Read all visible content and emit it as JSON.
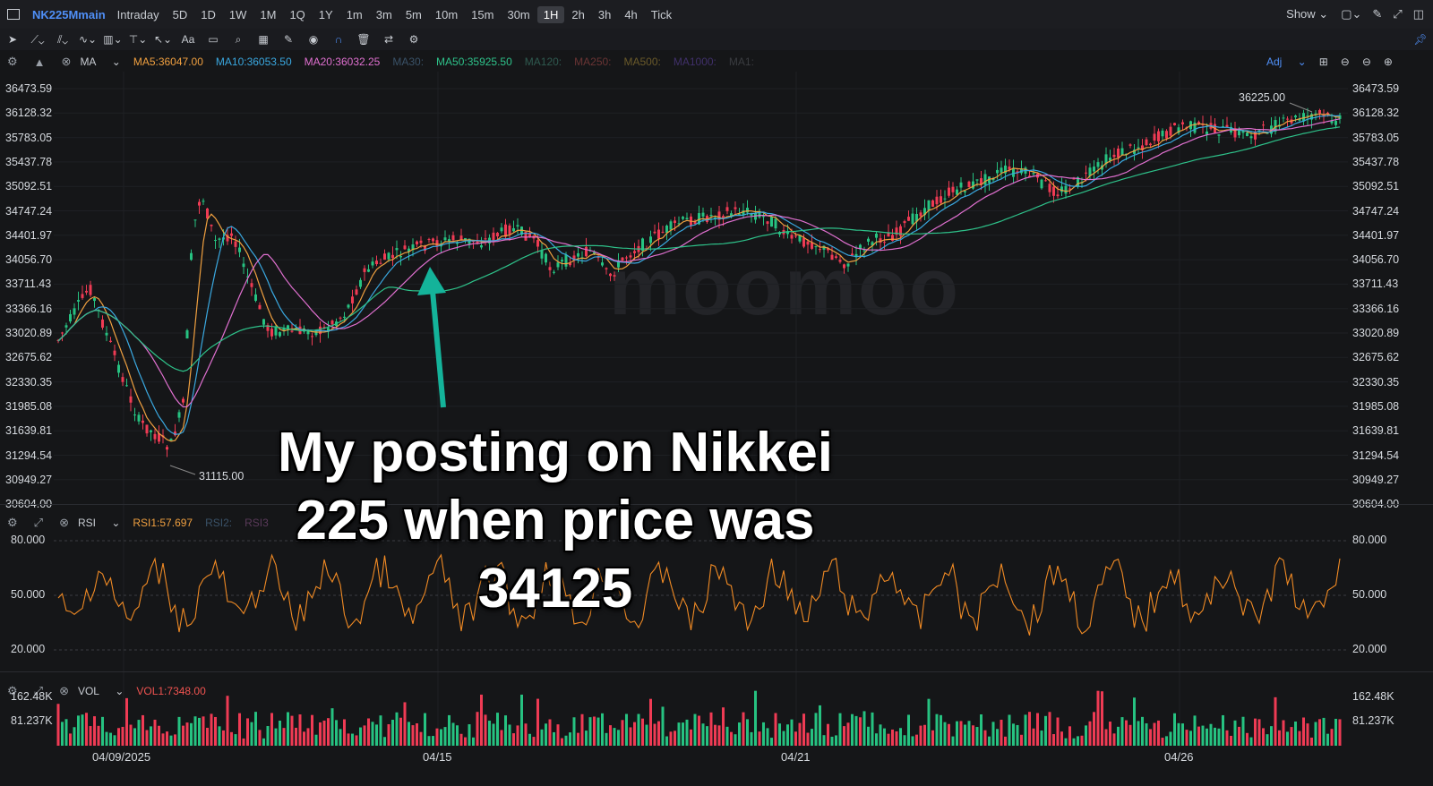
{
  "topbar": {
    "symbol": "NK225Mmain",
    "intervals": [
      "Intraday",
      "5D",
      "1D",
      "1W",
      "1M",
      "1Q",
      "1Y",
      "1m",
      "3m",
      "5m",
      "10m",
      "15m",
      "30m",
      "1H",
      "2h",
      "3h",
      "4h",
      "Tick"
    ],
    "active_interval": "1H",
    "show_label": "Show",
    "icons": [
      "sidebar-icon",
      "window-icon",
      "pen-icon",
      "expand-icon",
      "panel-icon"
    ]
  },
  "toolbar": {
    "icons": [
      "cursor-icon",
      "trendline-icon",
      "channel-icon",
      "wave-icon",
      "fibonacci-icon",
      "measure-icon",
      "arrow-icon",
      "text-icon",
      "comment-icon",
      "zoom-icon",
      "ruler-icon",
      "brush-icon",
      "eye-icon",
      "magnet-icon",
      "trash-icon",
      "sync-icon",
      "settings-icon",
      "pin-icon"
    ],
    "text_tool": "Aa"
  },
  "ma_bar": {
    "name": "MA",
    "items": [
      {
        "label": "MA5:36047.00",
        "color": "#f0a040"
      },
      {
        "label": "MA10:36053.50",
        "color": "#3aa8e0"
      },
      {
        "label": "MA20:36032.25",
        "color": "#e070d0"
      },
      {
        "label": "MA30:",
        "color": "#3a5268"
      },
      {
        "label": "MA50:35925.50",
        "color": "#2ec28a"
      },
      {
        "label": "MA120:",
        "color": "#2f5a50"
      },
      {
        "label": "MA250:",
        "color": "#6a3434"
      },
      {
        "label": "MA500:",
        "color": "#6a5a2a"
      },
      {
        "label": "MA1000:",
        "color": "#40306a"
      },
      {
        "label": "MA1:",
        "color": "#3a3c40"
      }
    ],
    "adj": "Adj"
  },
  "price_axis": [
    "36473.59",
    "36128.32",
    "35783.05",
    "35437.78",
    "35092.51",
    "34747.24",
    "34401.97",
    "34056.70",
    "33711.43",
    "33366.16",
    "33020.89",
    "32675.62",
    "32330.35",
    "31985.08",
    "31639.81",
    "31294.54",
    "30949.27",
    "30604.00"
  ],
  "high_label": "36225.00",
  "low_label": "31115.00",
  "watermark": "moomoo",
  "rsi_bar": {
    "name": "RSI",
    "items": [
      {
        "label": "RSI1:57.697",
        "color": "#f0a040"
      },
      {
        "label": "RSI2:",
        "color": "#3a5268"
      },
      {
        "label": "RSI3",
        "color": "#5a3a5a"
      }
    ]
  },
  "rsi_axis": [
    "80.000",
    "50.000",
    "20.000"
  ],
  "vol_bar": {
    "name": "VOL",
    "items": [
      {
        "label": "VOL1:7348.00",
        "color": "#ef5350"
      }
    ]
  },
  "vol_axis": [
    "162.48K",
    "81.237K"
  ],
  "dates": [
    "04/09/2025",
    "04/15",
    "04/21",
    "04/26"
  ],
  "overlay_text": [
    "My posting on Nikkei",
    "225 when price was",
    "34125"
  ],
  "colors": {
    "up": "#26c281",
    "down": "#ef3b54",
    "rsi": "#f08a24",
    "arrow": "#14b39a",
    "bg": "#151618"
  }
}
